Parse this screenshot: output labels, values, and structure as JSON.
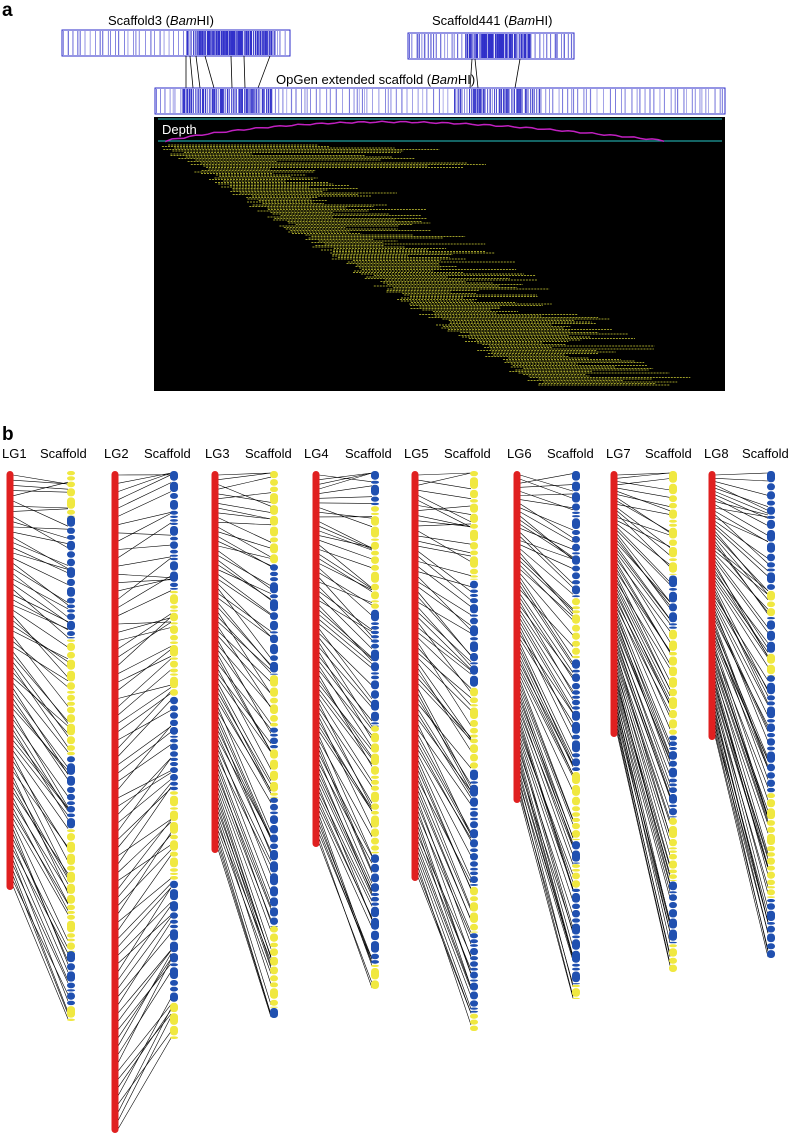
{
  "panels": {
    "a": {
      "letter": "a",
      "scaffold3_label": {
        "prefix": "Scaffold3 (",
        "enzyme_italic": "Bam",
        "suffix": "HI)"
      },
      "scaffold441_label": {
        "prefix": "Scaffold441 (",
        "enzyme_italic": "Bam",
        "suffix": "HI)"
      },
      "opgen_label": {
        "prefix": "OpGen extended scaffold (",
        "enzyme_italic": "Bam",
        "suffix": "HI)"
      },
      "depth_label": "Depth",
      "colors": {
        "map_fill": "#2b2bc8",
        "map_bg": "#ffffff",
        "depth_line": "#c020c0",
        "track_line": "#20a0a0",
        "reads": "#b8b830",
        "panel_bg": "#000000"
      }
    },
    "b": {
      "letter": "b",
      "linkage_groups": [
        {
          "name": "LG1",
          "scaffold_label": "Scaffold"
        },
        {
          "name": "LG2",
          "scaffold_label": "Scaffold"
        },
        {
          "name": "LG3",
          "scaffold_label": "Scaffold"
        },
        {
          "name": "LG4",
          "scaffold_label": "Scaffold"
        },
        {
          "name": "LG5",
          "scaffold_label": "Scaffold"
        },
        {
          "name": "LG6",
          "scaffold_label": "Scaffold"
        },
        {
          "name": "LG7",
          "scaffold_label": "Scaffold"
        },
        {
          "name": "LG8",
          "scaffold_label": "Scaffold"
        }
      ],
      "colors": {
        "chromosome": "#e02020",
        "scaffold_yellow": "#f0e840",
        "scaffold_blue": "#2050b0",
        "link_line": "#000000"
      }
    }
  }
}
